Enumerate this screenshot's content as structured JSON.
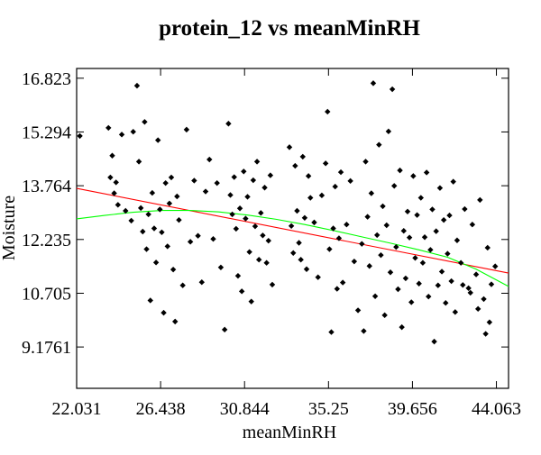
{
  "chart_data": {
    "type": "scatter",
    "title": "protein_12 vs meanMinRH",
    "xlabel": "meanMinRH",
    "ylabel": "Moisture",
    "xlim": [
      22.031,
      44.7
    ],
    "ylim": [
      8.0,
      17.1
    ],
    "x_ticks": [
      22.031,
      26.438,
      30.844,
      35.25,
      39.656,
      44.063
    ],
    "x_tick_labels": [
      "22.031",
      "26.438",
      "30.844",
      "35.25",
      "39.656",
      "44.063"
    ],
    "y_ticks": [
      9.1761,
      10.705,
      12.235,
      13.764,
      15.294,
      16.823
    ],
    "y_tick_labels": [
      "9.1761",
      "10.705",
      "12.235",
      "13.764",
      "15.294",
      "16.823"
    ],
    "grid": false,
    "colors": {
      "points": "#000000",
      "linear_fit": "#ff0000",
      "smooth_fit": "#00ff00",
      "frame": "#000000"
    },
    "points": [
      [
        22.2,
        15.18
      ],
      [
        24.0,
        13.55
      ],
      [
        23.9,
        14.62
      ],
      [
        23.7,
        15.41
      ],
      [
        24.1,
        13.86
      ],
      [
        23.8,
        14.0
      ],
      [
        24.2,
        13.22
      ],
      [
        24.4,
        15.22
      ],
      [
        24.6,
        13.05
      ],
      [
        24.9,
        12.77
      ],
      [
        25.0,
        15.3
      ],
      [
        25.2,
        16.61
      ],
      [
        25.3,
        14.45
      ],
      [
        25.4,
        13.13
      ],
      [
        25.5,
        12.46
      ],
      [
        25.6,
        15.58
      ],
      [
        25.7,
        11.96
      ],
      [
        25.8,
        12.95
      ],
      [
        25.9,
        10.5
      ],
      [
        26.0,
        13.56
      ],
      [
        26.1,
        12.55
      ],
      [
        26.2,
        11.58
      ],
      [
        26.3,
        15.06
      ],
      [
        26.4,
        13.09
      ],
      [
        26.5,
        12.44
      ],
      [
        26.6,
        10.15
      ],
      [
        26.7,
        13.84
      ],
      [
        26.8,
        12.04
      ],
      [
        26.9,
        13.26
      ],
      [
        27.0,
        14.0
      ],
      [
        27.1,
        11.38
      ],
      [
        27.2,
        9.9
      ],
      [
        27.3,
        13.46
      ],
      [
        27.4,
        12.79
      ],
      [
        27.6,
        10.93
      ],
      [
        27.8,
        15.36
      ],
      [
        28.0,
        12.17
      ],
      [
        28.2,
        13.91
      ],
      [
        28.4,
        12.34
      ],
      [
        28.6,
        11.02
      ],
      [
        28.8,
        13.6
      ],
      [
        29.0,
        14.51
      ],
      [
        29.2,
        12.25
      ],
      [
        29.4,
        13.84
      ],
      [
        29.6,
        11.44
      ],
      [
        29.8,
        9.67
      ],
      [
        30.0,
        15.53
      ],
      [
        30.1,
        13.5
      ],
      [
        30.2,
        12.95
      ],
      [
        30.3,
        14.01
      ],
      [
        30.4,
        12.54
      ],
      [
        30.5,
        11.2
      ],
      [
        30.6,
        13.12
      ],
      [
        30.7,
        10.76
      ],
      [
        30.8,
        14.17
      ],
      [
        30.9,
        12.83
      ],
      [
        31.0,
        13.45
      ],
      [
        31.1,
        11.88
      ],
      [
        31.2,
        10.47
      ],
      [
        31.3,
        13.92
      ],
      [
        31.4,
        12.61
      ],
      [
        31.5,
        14.45
      ],
      [
        31.6,
        11.66
      ],
      [
        31.7,
        12.99
      ],
      [
        31.8,
        12.35
      ],
      [
        31.9,
        13.71
      ],
      [
        32.0,
        11.57
      ],
      [
        32.1,
        12.2
      ],
      [
        32.2,
        14.06
      ],
      [
        32.3,
        10.95
      ],
      [
        33.2,
        14.86
      ],
      [
        33.3,
        12.62
      ],
      [
        33.4,
        11.85
      ],
      [
        33.5,
        14.33
      ],
      [
        33.6,
        13.05
      ],
      [
        33.7,
        12.14
      ],
      [
        33.8,
        11.66
      ],
      [
        33.9,
        14.59
      ],
      [
        34.0,
        12.85
      ],
      [
        34.1,
        11.39
      ],
      [
        34.2,
        14.04
      ],
      [
        34.3,
        13.42
      ],
      [
        34.5,
        12.72
      ],
      [
        34.7,
        11.16
      ],
      [
        34.9,
        13.49
      ],
      [
        35.1,
        14.4
      ],
      [
        35.2,
        15.87
      ],
      [
        35.3,
        11.96
      ],
      [
        35.4,
        9.6
      ],
      [
        35.5,
        12.55
      ],
      [
        35.6,
        13.74
      ],
      [
        35.7,
        10.83
      ],
      [
        35.8,
        12.27
      ],
      [
        35.9,
        14.15
      ],
      [
        36.0,
        11.01
      ],
      [
        36.2,
        12.66
      ],
      [
        36.4,
        13.9
      ],
      [
        36.6,
        11.61
      ],
      [
        36.8,
        10.22
      ],
      [
        37.0,
        12.11
      ],
      [
        37.1,
        9.63
      ],
      [
        37.2,
        14.45
      ],
      [
        37.3,
        12.88
      ],
      [
        37.4,
        11.48
      ],
      [
        37.5,
        13.55
      ],
      [
        37.6,
        16.68
      ],
      [
        37.7,
        10.62
      ],
      [
        37.8,
        12.36
      ],
      [
        37.9,
        14.93
      ],
      [
        38.0,
        11.79
      ],
      [
        38.1,
        13.18
      ],
      [
        38.2,
        10.08
      ],
      [
        38.3,
        12.64
      ],
      [
        38.4,
        15.31
      ],
      [
        38.5,
        11.3
      ],
      [
        38.6,
        16.51
      ],
      [
        38.7,
        13.76
      ],
      [
        38.8,
        12.02
      ],
      [
        38.9,
        10.82
      ],
      [
        39.0,
        14.2
      ],
      [
        39.1,
        9.74
      ],
      [
        39.2,
        12.48
      ],
      [
        39.3,
        11.13
      ],
      [
        39.4,
        13.03
      ],
      [
        39.5,
        12.29
      ],
      [
        39.6,
        10.45
      ],
      [
        39.7,
        14.04
      ],
      [
        39.8,
        11.71
      ],
      [
        39.9,
        12.93
      ],
      [
        40.0,
        10.98
      ],
      [
        40.1,
        13.42
      ],
      [
        40.2,
        11.57
      ],
      [
        40.3,
        12.3
      ],
      [
        40.4,
        14.14
      ],
      [
        40.5,
        10.61
      ],
      [
        40.6,
        11.94
      ],
      [
        40.7,
        13.09
      ],
      [
        40.8,
        9.33
      ],
      [
        40.9,
        12.47
      ],
      [
        41.0,
        10.93
      ],
      [
        41.1,
        13.7
      ],
      [
        41.2,
        11.32
      ],
      [
        41.3,
        12.79
      ],
      [
        41.4,
        10.43
      ],
      [
        41.5,
        11.83
      ],
      [
        41.6,
        12.92
      ],
      [
        41.7,
        11.05
      ],
      [
        41.8,
        13.88
      ],
      [
        41.9,
        10.17
      ],
      [
        42.0,
        12.21
      ],
      [
        42.2,
        11.57
      ],
      [
        42.4,
        13.1
      ],
      [
        42.6,
        10.85
      ],
      [
        42.8,
        12.66
      ],
      [
        43.0,
        11.24
      ],
      [
        43.2,
        13.36
      ],
      [
        43.4,
        10.54
      ],
      [
        43.6,
        12.0
      ],
      [
        43.8,
        10.96
      ],
      [
        44.0,
        11.47
      ],
      [
        43.7,
        9.88
      ],
      [
        43.5,
        9.55
      ],
      [
        43.1,
        10.26
      ],
      [
        42.7,
        10.72
      ],
      [
        42.3,
        10.94
      ]
    ],
    "linear_fit": [
      [
        22.031,
        13.69
      ],
      [
        44.7,
        11.28
      ]
    ],
    "smooth_fit": [
      [
        22.031,
        12.82
      ],
      [
        23.5,
        12.92
      ],
      [
        25.0,
        13.01
      ],
      [
        26.5,
        13.06
      ],
      [
        28.0,
        13.06
      ],
      [
        29.5,
        13.02
      ],
      [
        31.0,
        12.93
      ],
      [
        32.5,
        12.81
      ],
      [
        34.0,
        12.66
      ],
      [
        35.5,
        12.49
      ],
      [
        37.0,
        12.31
      ],
      [
        38.5,
        12.13
      ],
      [
        40.0,
        11.94
      ],
      [
        41.5,
        11.73
      ],
      [
        43.0,
        11.39
      ],
      [
        44.7,
        10.9
      ]
    ]
  }
}
